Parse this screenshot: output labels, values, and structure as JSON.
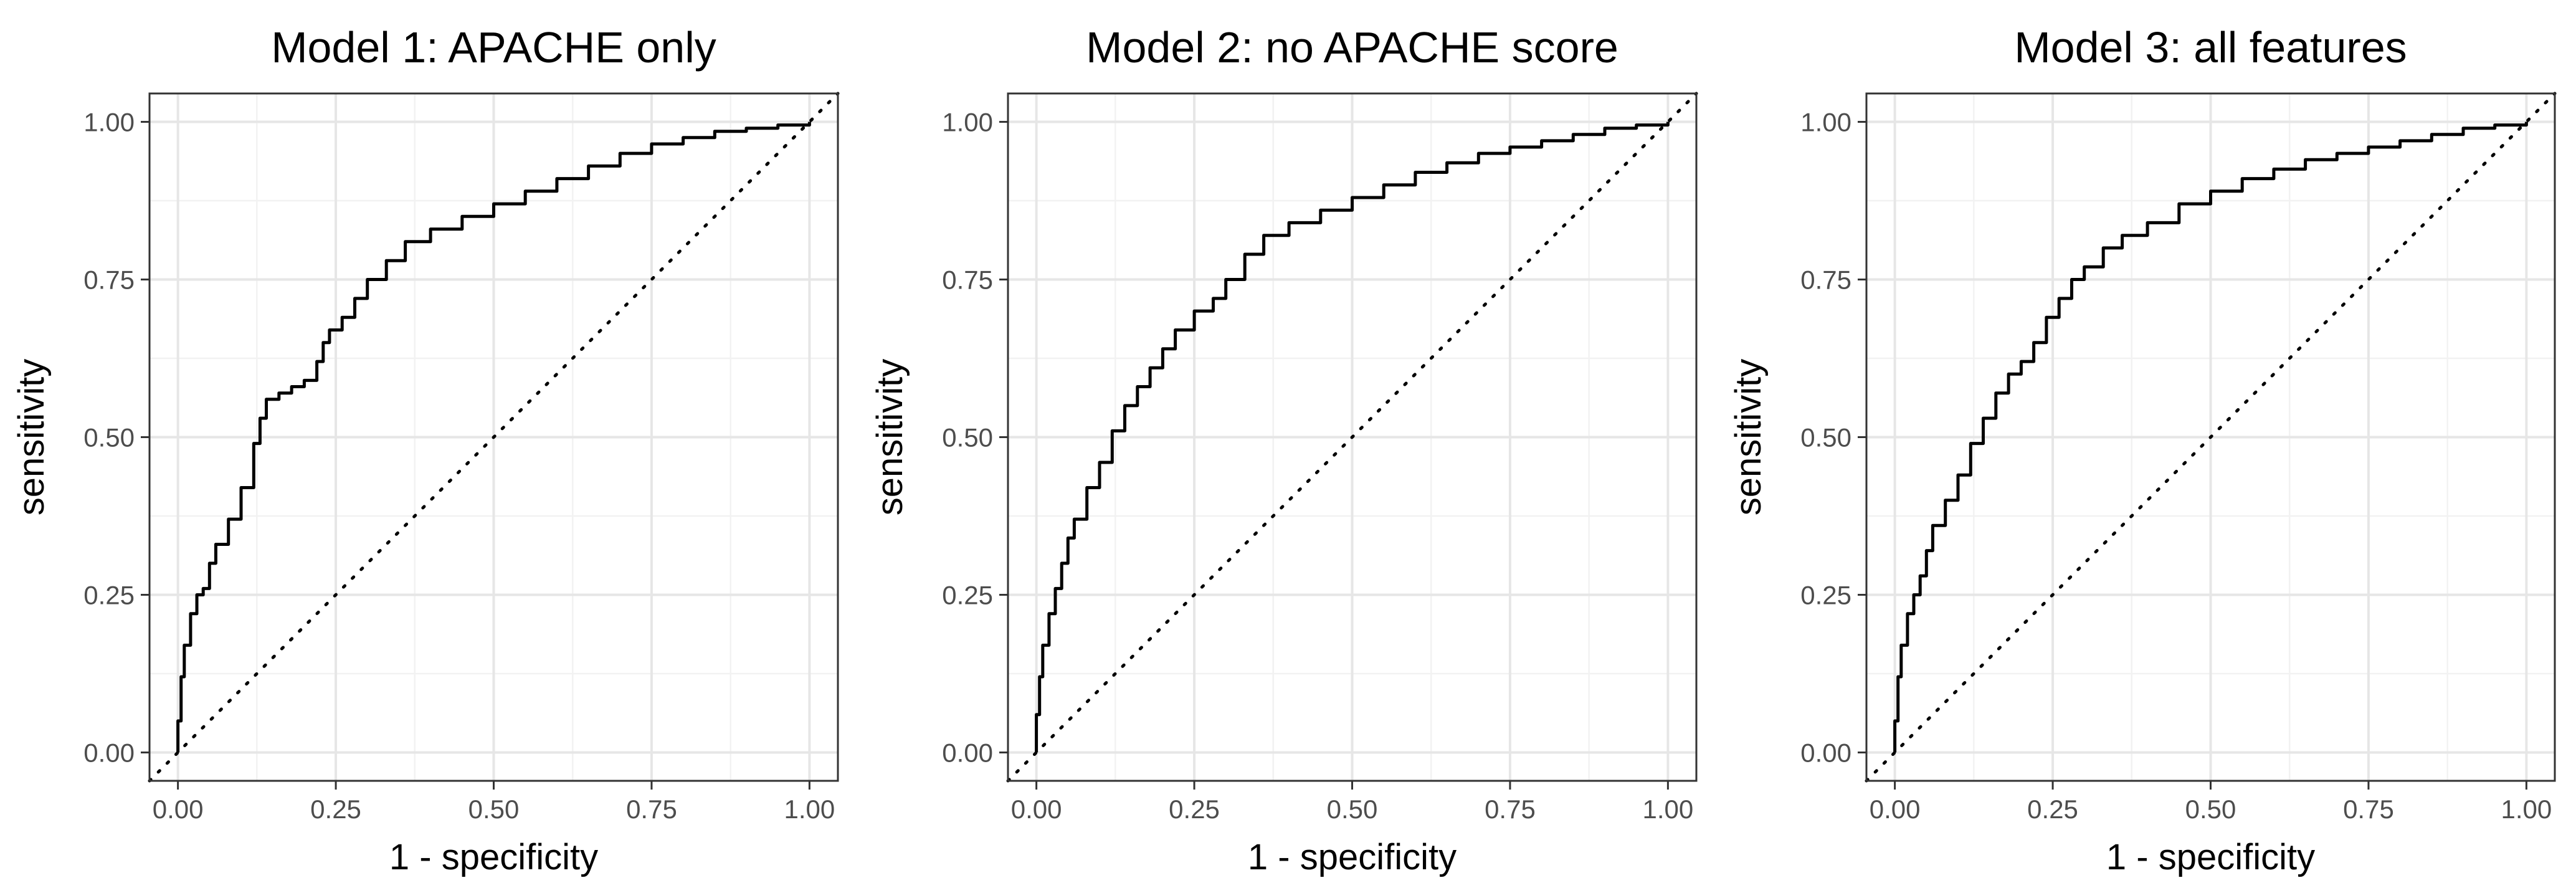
{
  "chart_data": [
    {
      "type": "line",
      "title": "Model 1: APACHE only",
      "xlabel": "1 - specificity",
      "ylabel": "sensitivity",
      "xlim": [
        0,
        1
      ],
      "ylim": [
        0,
        1
      ],
      "x_ticks": [
        "0.00",
        "0.25",
        "0.50",
        "0.75",
        "1.00"
      ],
      "y_ticks": [
        "0.00",
        "0.25",
        "0.50",
        "0.75",
        "1.00"
      ],
      "grid": true,
      "reference_line": "dotted diagonal",
      "series": [
        {
          "x": [
            0,
            0,
            0.005,
            0.01,
            0.02,
            0.03,
            0.04,
            0.05,
            0.06,
            0.08,
            0.1,
            0.12,
            0.13,
            0.14,
            0.16,
            0.18,
            0.2,
            0.22,
            0.23,
            0.24,
            0.26,
            0.28,
            0.3,
            0.33,
            0.36,
            0.4,
            0.45,
            0.5,
            0.55,
            0.6,
            0.65,
            0.7,
            0.75,
            0.8,
            0.85,
            0.9,
            0.95,
            1.0
          ],
          "y": [
            0,
            0.05,
            0.12,
            0.17,
            0.22,
            0.25,
            0.26,
            0.3,
            0.33,
            0.37,
            0.42,
            0.49,
            0.53,
            0.56,
            0.57,
            0.58,
            0.59,
            0.62,
            0.65,
            0.67,
            0.69,
            0.72,
            0.75,
            0.78,
            0.81,
            0.83,
            0.85,
            0.87,
            0.89,
            0.91,
            0.93,
            0.95,
            0.965,
            0.975,
            0.985,
            0.99,
            0.995,
            1.0
          ]
        }
      ]
    },
    {
      "type": "line",
      "title": "Model 2: no APACHE score",
      "xlabel": "1 - specificity",
      "ylabel": "sensitivity",
      "xlim": [
        0,
        1
      ],
      "ylim": [
        0,
        1
      ],
      "x_ticks": [
        "0.00",
        "0.25",
        "0.50",
        "0.75",
        "1.00"
      ],
      "y_ticks": [
        "0.00",
        "0.25",
        "0.50",
        "0.75",
        "1.00"
      ],
      "grid": true,
      "reference_line": "dotted diagonal",
      "series": [
        {
          "x": [
            0,
            0,
            0.005,
            0.01,
            0.02,
            0.03,
            0.04,
            0.05,
            0.06,
            0.08,
            0.1,
            0.12,
            0.14,
            0.16,
            0.18,
            0.2,
            0.22,
            0.25,
            0.28,
            0.3,
            0.33,
            0.36,
            0.4,
            0.45,
            0.5,
            0.55,
            0.6,
            0.65,
            0.7,
            0.75,
            0.8,
            0.85,
            0.9,
            0.95,
            1.0
          ],
          "y": [
            0,
            0.06,
            0.12,
            0.17,
            0.22,
            0.26,
            0.3,
            0.34,
            0.37,
            0.42,
            0.46,
            0.51,
            0.55,
            0.58,
            0.61,
            0.64,
            0.67,
            0.7,
            0.72,
            0.75,
            0.79,
            0.82,
            0.84,
            0.86,
            0.88,
            0.9,
            0.92,
            0.935,
            0.95,
            0.96,
            0.97,
            0.98,
            0.99,
            0.995,
            1.0
          ]
        }
      ]
    },
    {
      "type": "line",
      "title": "Model 3: all features",
      "xlabel": "1 - specificity",
      "ylabel": "sensitivity",
      "xlim": [
        0,
        1
      ],
      "ylim": [
        0,
        1
      ],
      "x_ticks": [
        "0.00",
        "0.25",
        "0.50",
        "0.75",
        "1.00"
      ],
      "y_ticks": [
        "0.00",
        "0.25",
        "0.50",
        "0.75",
        "1.00"
      ],
      "grid": true,
      "reference_line": "dotted diagonal",
      "series": [
        {
          "x": [
            0,
            0,
            0.005,
            0.01,
            0.02,
            0.03,
            0.04,
            0.05,
            0.06,
            0.08,
            0.1,
            0.12,
            0.14,
            0.16,
            0.18,
            0.2,
            0.22,
            0.24,
            0.26,
            0.28,
            0.3,
            0.33,
            0.36,
            0.4,
            0.45,
            0.5,
            0.55,
            0.6,
            0.65,
            0.7,
            0.75,
            0.8,
            0.85,
            0.9,
            0.95,
            1.0
          ],
          "y": [
            0,
            0.05,
            0.12,
            0.17,
            0.22,
            0.25,
            0.28,
            0.32,
            0.36,
            0.4,
            0.44,
            0.49,
            0.53,
            0.57,
            0.6,
            0.62,
            0.65,
            0.69,
            0.72,
            0.75,
            0.77,
            0.8,
            0.82,
            0.84,
            0.87,
            0.89,
            0.91,
            0.925,
            0.94,
            0.95,
            0.96,
            0.97,
            0.98,
            0.99,
            0.995,
            1.0
          ]
        }
      ]
    }
  ]
}
